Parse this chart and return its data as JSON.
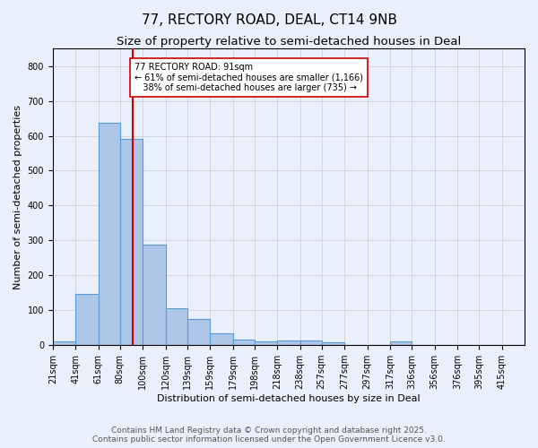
{
  "title": "77, RECTORY ROAD, DEAL, CT14 9NB",
  "subtitle": "Size of property relative to semi-detached houses in Deal",
  "xlabel": "Distribution of semi-detached houses by size in Deal",
  "ylabel": "Number of semi-detached properties",
  "footer_line1": "Contains HM Land Registry data © Crown copyright and database right 2025.",
  "footer_line2": "Contains public sector information licensed under the Open Government Licence v3.0.",
  "bin_labels": [
    "21sqm",
    "41sqm",
    "61sqm",
    "80sqm",
    "100sqm",
    "120sqm",
    "139sqm",
    "159sqm",
    "179sqm",
    "198sqm",
    "218sqm",
    "238sqm",
    "257sqm",
    "277sqm",
    "297sqm",
    "317sqm",
    "336sqm",
    "356sqm",
    "376sqm",
    "395sqm",
    "415sqm"
  ],
  "bin_edges": [
    21,
    41,
    61,
    80,
    100,
    120,
    139,
    159,
    179,
    198,
    218,
    238,
    257,
    277,
    297,
    317,
    336,
    356,
    376,
    395,
    415
  ],
  "bar_heights": [
    10,
    148,
    638,
    590,
    288,
    106,
    76,
    35,
    15,
    10,
    13,
    13,
    7,
    0,
    0,
    10,
    0,
    0,
    0,
    0,
    0
  ],
  "bar_color": "#aec6e8",
  "bar_edgecolor": "#5b9bd5",
  "bar_linewidth": 0.8,
  "vline_x": 91,
  "vline_color": "#cc0000",
  "vline_linewidth": 1.5,
  "annotation_text": "77 RECTORY ROAD: 91sqm\n← 61% of semi-detached houses are smaller (1,166)\n   38% of semi-detached houses are larger (735) →",
  "annotation_box_edgecolor": "#cc0000",
  "annotation_box_facecolor": "#ffffff",
  "ylim": [
    0,
    850
  ],
  "yticks": [
    0,
    100,
    200,
    300,
    400,
    500,
    600,
    700,
    800
  ],
  "grid_color": "#cccccc",
  "bg_color": "#eaf0fb",
  "title_fontsize": 11,
  "subtitle_fontsize": 9.5,
  "axis_fontsize": 8,
  "tick_fontsize": 7,
  "annotation_fontsize": 7,
  "footer_fontsize": 6.5
}
